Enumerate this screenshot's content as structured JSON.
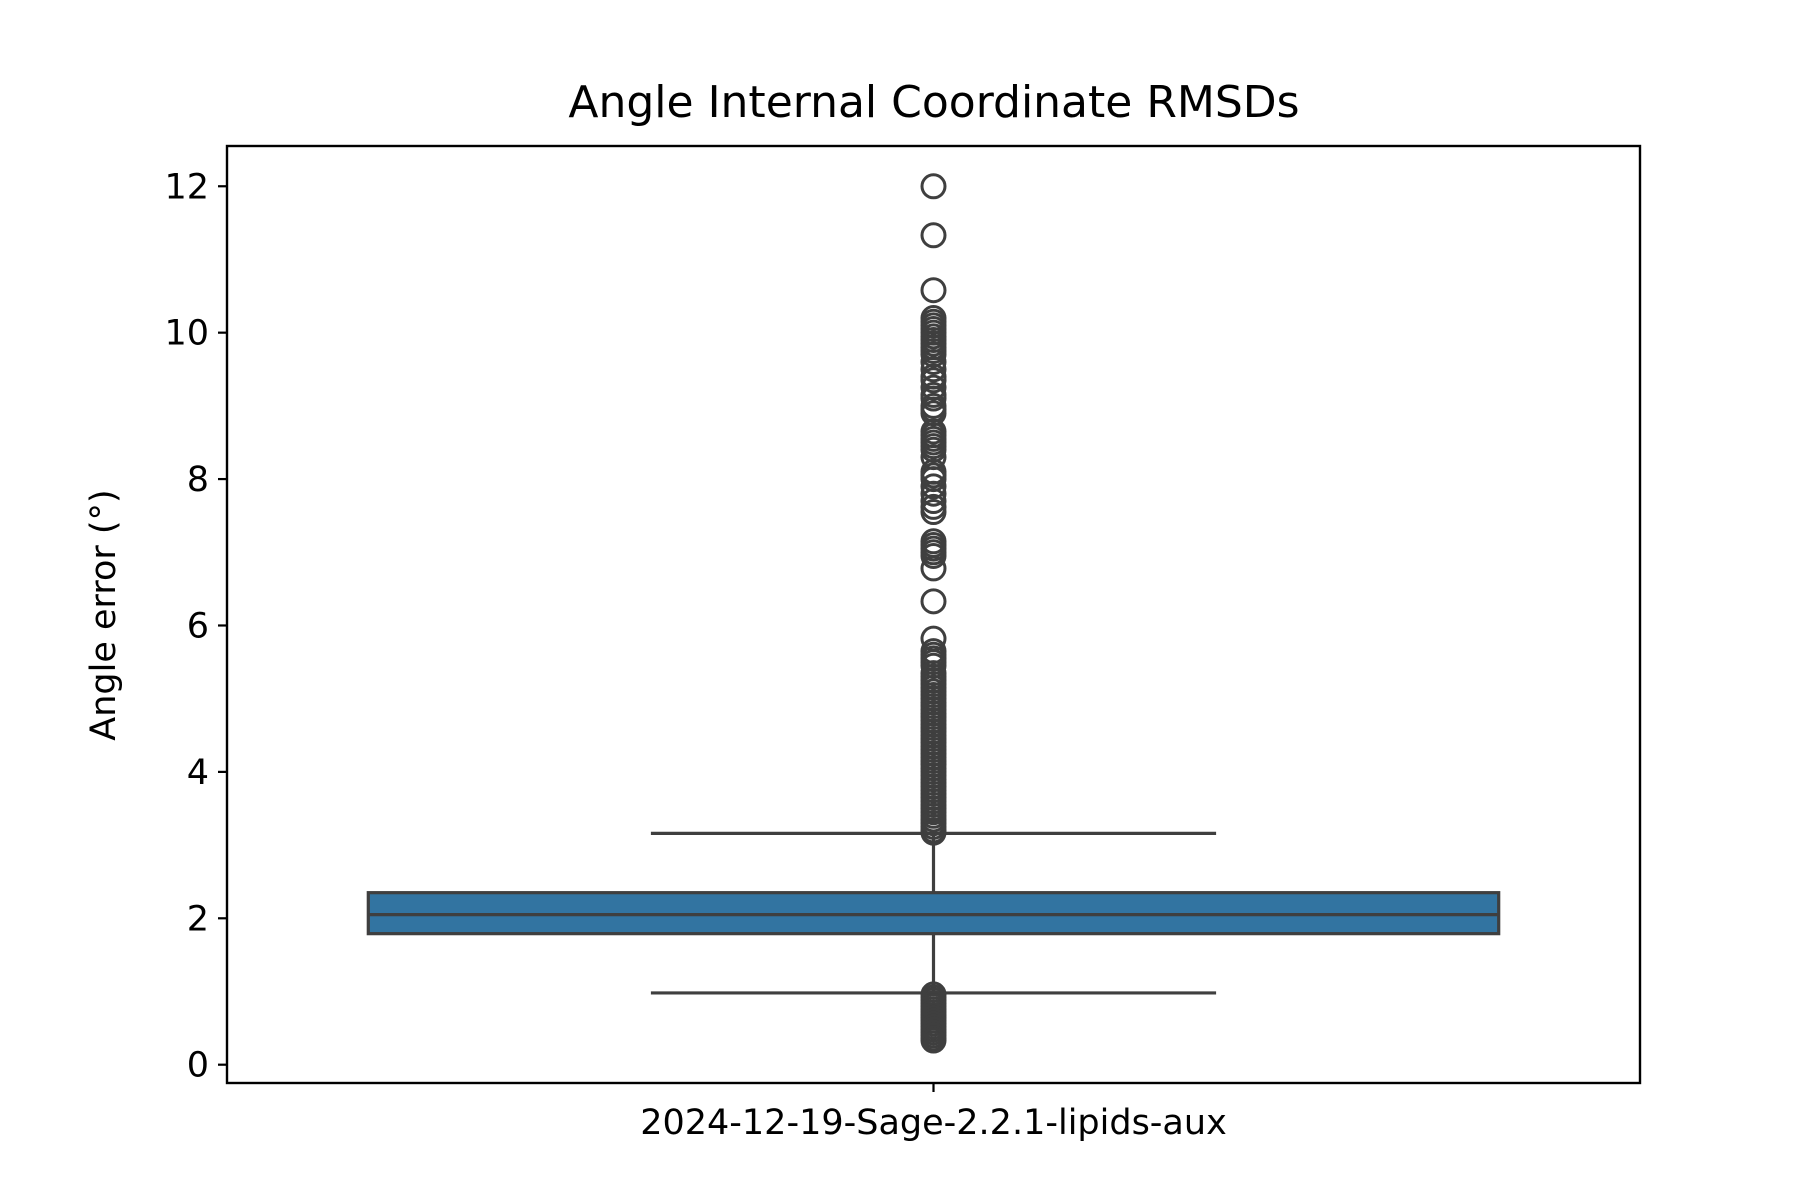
{
  "chart_data": {
    "type": "box",
    "title": "Angle Internal Coordinate RMSDs",
    "xlabel": "",
    "ylabel": "Angle error (°)",
    "categories": [
      "2024-12-19-Sage-2.2.1-lipids-aux"
    ],
    "ylim": [
      -0.25,
      12.55
    ],
    "yticks": [
      0,
      2,
      4,
      6,
      8,
      10,
      12
    ],
    "grid": false,
    "box_color": "#3274a1",
    "line_color": "#3f3f3f",
    "boxes": [
      {
        "category": "2024-12-19-Sage-2.2.1-lipids-aux",
        "whisker_low": 0.98,
        "q1": 1.79,
        "median": 2.05,
        "q3": 2.35,
        "whisker_high": 3.16,
        "outliers": [
          12.0,
          11.33,
          10.58,
          10.2,
          10.15,
          10.1,
          10.05,
          10.0,
          9.95,
          9.9,
          9.85,
          9.8,
          9.75,
          9.7,
          9.6,
          9.5,
          9.4,
          9.35,
          9.25,
          9.15,
          9.1,
          9.0,
          8.95,
          8.9,
          8.65,
          8.6,
          8.55,
          8.5,
          8.45,
          8.4,
          8.3,
          8.1,
          8.05,
          8.0,
          7.9,
          7.8,
          7.7,
          7.62,
          7.55,
          7.15,
          7.1,
          7.05,
          7.0,
          6.95,
          6.78,
          6.33,
          5.82,
          5.65,
          5.6,
          5.55,
          5.5,
          5.45,
          5.35,
          5.3,
          5.25,
          5.2,
          5.15,
          5.1,
          5.05,
          5.0,
          4.95,
          4.9,
          4.85,
          4.8,
          4.75,
          4.7,
          4.65,
          4.6,
          4.55,
          4.5,
          4.45,
          4.4,
          4.35,
          4.3,
          4.25,
          4.2,
          4.15,
          4.1,
          4.05,
          4.0,
          3.95,
          3.9,
          3.85,
          3.8,
          3.75,
          3.7,
          3.65,
          3.6,
          3.55,
          3.5,
          3.45,
          3.4,
          3.35,
          3.3,
          3.25,
          3.2,
          3.17,
          0.96,
          0.92,
          0.88,
          0.84,
          0.8,
          0.76,
          0.72,
          0.68,
          0.64,
          0.6,
          0.56,
          0.52,
          0.48,
          0.44,
          0.4,
          0.36,
          0.33
        ]
      }
    ]
  }
}
